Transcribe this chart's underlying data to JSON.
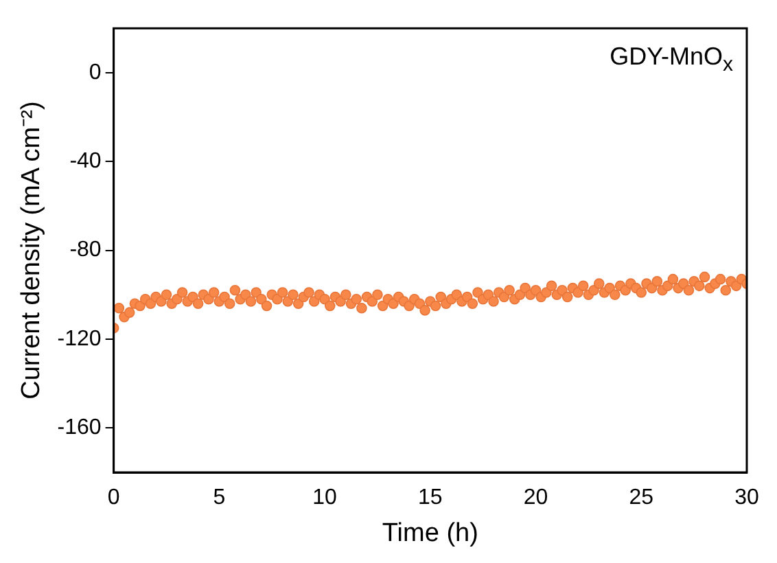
{
  "chart_data": {
    "type": "scatter",
    "xlabel": "Time (h)",
    "ylabel": "Current density (mA cm⁻²)",
    "annotations": [
      "GDY-MnO$_{x}$"
    ],
    "xlim": [
      0,
      30
    ],
    "xticks": [
      0,
      5,
      10,
      15,
      20,
      25,
      30
    ],
    "ylim": [
      -180,
      20
    ],
    "yticks": [
      0,
      -40,
      -80,
      -120,
      -160
    ],
    "grid": false,
    "legend": false,
    "marker": "circle",
    "series": [
      {
        "color": "#f7884a",
        "x": [
          0,
          0.25,
          0.5,
          0.75,
          1,
          1.25,
          1.5,
          1.75,
          2,
          2.25,
          2.5,
          2.75,
          3,
          3.25,
          3.5,
          3.75,
          4,
          4.25,
          4.5,
          4.75,
          5,
          5.25,
          5.5,
          5.75,
          6,
          6.25,
          6.5,
          6.75,
          7,
          7.25,
          7.5,
          7.75,
          8,
          8.25,
          8.5,
          8.75,
          9,
          9.25,
          9.5,
          9.75,
          10,
          10.25,
          10.5,
          10.75,
          11,
          11.25,
          11.5,
          11.75,
          12,
          12.25,
          12.5,
          12.75,
          13,
          13.25,
          13.5,
          13.75,
          14,
          14.25,
          14.5,
          14.75,
          15,
          15.25,
          15.5,
          15.75,
          16,
          16.25,
          16.5,
          16.75,
          17,
          17.25,
          17.5,
          17.75,
          18,
          18.25,
          18.5,
          18.75,
          19,
          19.25,
          19.5,
          19.75,
          20,
          20.25,
          20.5,
          20.75,
          21,
          21.25,
          21.5,
          21.75,
          22,
          22.25,
          22.5,
          22.75,
          23,
          23.25,
          23.5,
          23.75,
          24,
          24.25,
          24.5,
          24.75,
          25,
          25.25,
          25.5,
          25.75,
          26,
          26.25,
          26.5,
          26.75,
          27,
          27.25,
          27.5,
          27.75,
          28,
          28.25,
          28.5,
          28.75,
          29,
          29.25,
          29.5,
          29.75,
          30
        ],
        "values": [
          -115,
          -106,
          -110,
          -108,
          -104,
          -105,
          -102,
          -104,
          -101,
          -103,
          -100,
          -104,
          -102,
          -99,
          -103,
          -101,
          -104,
          -100,
          -102,
          -99,
          -103,
          -101,
          -104,
          -98,
          -102,
          -100,
          -103,
          -99,
          -102,
          -105,
          -100,
          -102,
          -99,
          -103,
          -100,
          -104,
          -101,
          -99,
          -103,
          -100,
          -102,
          -105,
          -101,
          -103,
          -100,
          -104,
          -102,
          -106,
          -101,
          -103,
          -100,
          -105,
          -102,
          -104,
          -101,
          -103,
          -105,
          -102,
          -104,
          -107,
          -103,
          -105,
          -101,
          -104,
          -102,
          -100,
          -103,
          -101,
          -104,
          -99,
          -102,
          -100,
          -103,
          -99,
          -101,
          -98,
          -102,
          -100,
          -97,
          -100,
          -98,
          -101,
          -99,
          -96,
          -100,
          -98,
          -101,
          -97,
          -99,
          -96,
          -100,
          -98,
          -95,
          -99,
          -97,
          -100,
          -96,
          -98,
          -95,
          -97,
          -99,
          -95,
          -97,
          -94,
          -98,
          -96,
          -93,
          -97,
          -95,
          -98,
          -94,
          -96,
          -92,
          -97,
          -95,
          -93,
          -98,
          -94,
          -96,
          -93,
          -95
        ]
      }
    ]
  }
}
